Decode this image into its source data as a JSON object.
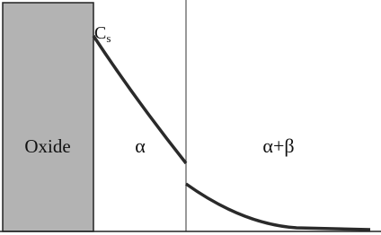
{
  "regions": {
    "oxide": "Oxide",
    "alpha": "α",
    "alpha_beta": "α+β"
  },
  "surface_concentration": {
    "symbol": "C",
    "subscript": "s"
  }
}
